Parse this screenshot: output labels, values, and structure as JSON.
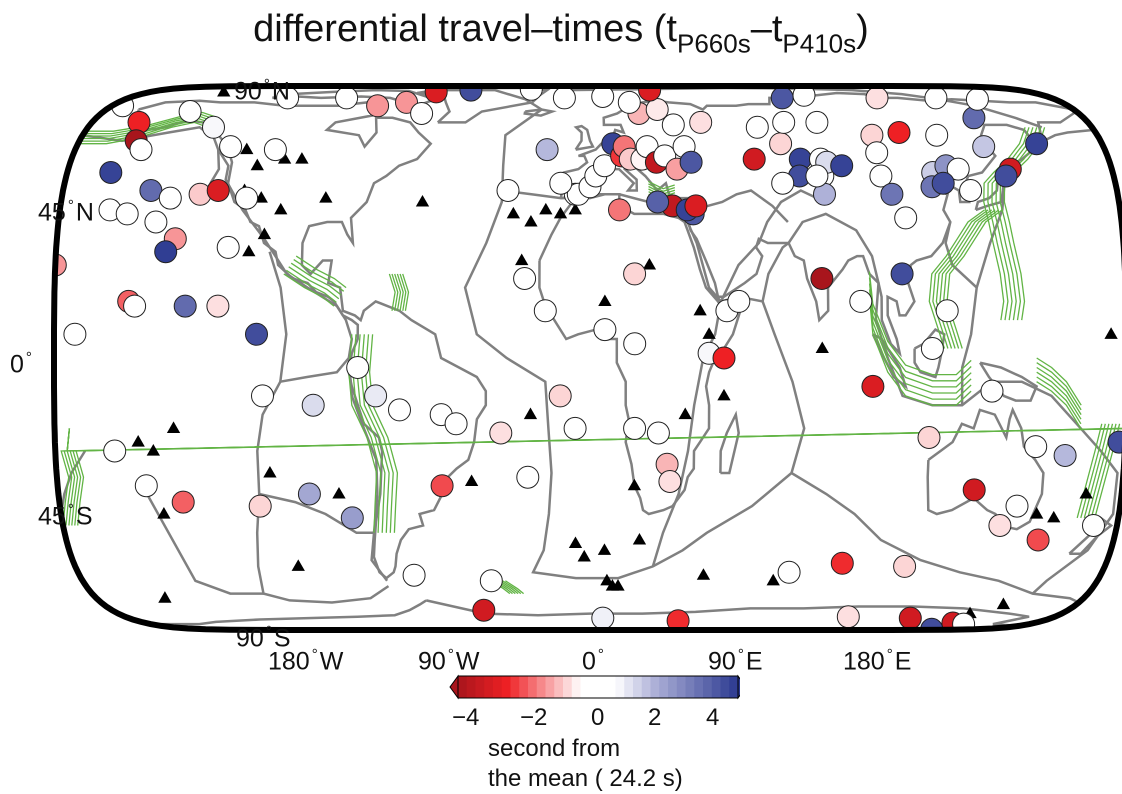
{
  "title": {
    "prefix": "differential travel–times (t",
    "sub1": "P660s",
    "mid": "–t",
    "sub2": "P410s",
    "suffix": ")"
  },
  "lat_labels": [
    {
      "id": "lat-90n",
      "text": "90",
      "hemi": "N",
      "lat": 90
    },
    {
      "id": "lat-45n",
      "text": "45",
      "hemi": "N",
      "lat": 45
    },
    {
      "id": "lat-0",
      "text": "0",
      "hemi": "",
      "lat": 0
    },
    {
      "id": "lat-45s",
      "text": "45",
      "hemi": "S",
      "lat": -45
    },
    {
      "id": "lat-90s",
      "text": "90",
      "hemi": "S",
      "lat": -90
    }
  ],
  "lon_labels": [
    {
      "id": "lon-180w",
      "text": "180",
      "hemi": "W",
      "lon": -180
    },
    {
      "id": "lon-90w",
      "text": "90",
      "hemi": "W",
      "lon": -90
    },
    {
      "id": "lon-0",
      "text": "0",
      "hemi": "",
      "lon": 0
    },
    {
      "id": "lon-90e",
      "text": "90",
      "hemi": "E",
      "lon": 90
    },
    {
      "id": "lon-180e",
      "text": "180",
      "hemi": "E",
      "lon": 180
    }
  ],
  "colorbar": {
    "min": -4,
    "max": 4,
    "ticks": [
      "−4",
      "−2",
      "0",
      "2",
      "4"
    ],
    "tick_values": [
      -4,
      -2,
      0,
      2,
      4
    ],
    "caption_line1": "second from",
    "caption_line2": "the mean ( 24.2 s)",
    "colors": {
      "low": "#a8151c",
      "mid_low": "#ee2024",
      "zero": "#ffffff",
      "mid_high": "#aeb1d8",
      "high": "#2b3990"
    }
  },
  "colors": {
    "frame": "#000000",
    "coast": "#808080",
    "plate": "#808080",
    "slab": "#62b445",
    "triangle": "#000000",
    "marker_stroke": "#222222"
  },
  "stations": [
    {
      "lon": -176,
      "lat": 68,
      "v": 0
    },
    {
      "lon": -163,
      "lat": 60,
      "v": -2.6
    },
    {
      "lon": -160,
      "lat": 53,
      "v": -4
    },
    {
      "lon": -157,
      "lat": 50,
      "v": 0
    },
    {
      "lon": -165,
      "lat": 43,
      "v": 3.8
    },
    {
      "lon": -150,
      "lat": 38,
      "v": 3.0
    },
    {
      "lon": -143,
      "lat": 36,
      "v": 0
    },
    {
      "lon": -133,
      "lat": 37,
      "v": -1.0
    },
    {
      "lon": -148,
      "lat": 65,
      "v": 0
    },
    {
      "lon": -135,
      "lat": 58,
      "v": 0.6
    },
    {
      "lon": -126,
      "lat": 51,
      "v": 0
    },
    {
      "lon": -110,
      "lat": 50,
      "v": 0
    },
    {
      "lon": -163,
      "lat": 33,
      "v": 0
    },
    {
      "lon": -157,
      "lat": 32,
      "v": 0
    },
    {
      "lon": -147,
      "lat": 30,
      "v": 0
    },
    {
      "lon": -140,
      "lat": 26,
      "v": -1.5
    },
    {
      "lon": -127,
      "lat": 38,
      "v": -3.0
    },
    {
      "lon": -117,
      "lat": 36,
      "v": 0
    },
    {
      "lon": -143,
      "lat": 23,
      "v": 3.9
    },
    {
      "lon": -122,
      "lat": 24,
      "v": 0
    },
    {
      "lon": -118,
      "lat": 73,
      "v": 0
    },
    {
      "lon": -95,
      "lat": 73,
      "v": 0
    },
    {
      "lon": -80,
      "lat": 68,
      "v": -1.5
    },
    {
      "lon": -70,
      "lat": 70,
      "v": -1.5
    },
    {
      "lon": -62,
      "lat": 64,
      "v": 0
    },
    {
      "lon": -63,
      "lat": 78,
      "v": -3.0
    },
    {
      "lon": -50,
      "lat": 80,
      "v": 3.6
    },
    {
      "lon": -25,
      "lat": 81,
      "v": 0
    },
    {
      "lon": -180,
      "lat": 20,
      "v": -1.5
    },
    {
      "lon": -173,
      "lat": 5,
      "v": 0
    },
    {
      "lon": -155,
      "lat": 12,
      "v": -2.0
    },
    {
      "lon": -153,
      "lat": 11,
      "v": 0
    },
    {
      "lon": -136,
      "lat": 11,
      "v": 3.0
    },
    {
      "lon": -125,
      "lat": 11,
      "v": -0.8
    },
    {
      "lon": -112,
      "lat": 5,
      "v": 3.6
    },
    {
      "lon": -110,
      "lat": -8,
      "v": 0
    },
    {
      "lon": -93,
      "lat": -10,
      "v": 1.0
    },
    {
      "lon": -78,
      "lat": -2,
      "v": 0
    },
    {
      "lon": -72,
      "lat": -8,
      "v": 0.8
    },
    {
      "lon": -64,
      "lat": -11,
      "v": 0
    },
    {
      "lon": -50,
      "lat": -12,
      "v": 0
    },
    {
      "lon": -45,
      "lat": -14,
      "v": 0
    },
    {
      "lon": -30,
      "lat": -16,
      "v": -0.8
    },
    {
      "lon": -21,
      "lat": -26,
      "v": 0
    },
    {
      "lon": -160,
      "lat": -20,
      "v": 0
    },
    {
      "lon": -150,
      "lat": -28,
      "v": 0
    },
    {
      "lon": -138,
      "lat": -32,
      "v": -2.0
    },
    {
      "lon": -112,
      "lat": -33,
      "v": -0.9
    },
    {
      "lon": -95,
      "lat": -30,
      "v": 1.8
    },
    {
      "lon": -81,
      "lat": -36,
      "v": 2.0
    },
    {
      "lon": -50,
      "lat": -28,
      "v": -2.2
    },
    {
      "lon": -62,
      "lat": -53,
      "v": 0
    },
    {
      "lon": -35,
      "lat": -55,
      "v": 0
    },
    {
      "lon": -40,
      "lat": -68,
      "v": -3.2
    },
    {
      "lon": 5,
      "lat": -73,
      "v": 0.7
    },
    {
      "lon": 35,
      "lat": -75,
      "v": -2.5
    },
    {
      "lon": 100,
      "lat": -72,
      "v": -0.8
    },
    {
      "lon": 125,
      "lat": -73,
      "v": -3.2
    },
    {
      "lon": 147,
      "lat": -77,
      "v": -3.2
    },
    {
      "lon": 153,
      "lat": -78,
      "v": 0
    },
    {
      "lon": 160,
      "lat": -86,
      "v": 3.6
    },
    {
      "lon": 110,
      "lat": -50,
      "v": -0.9
    },
    {
      "lon": 88,
      "lat": -49,
      "v": -2.5
    },
    {
      "lon": 70,
      "lat": -52,
      "v": 0
    },
    {
      "lon": 130,
      "lat": -29,
      "v": -3.2
    },
    {
      "lon": 140,
      "lat": -38,
      "v": -0.8
    },
    {
      "lon": 145,
      "lat": -33,
      "v": 0
    },
    {
      "lon": 154,
      "lat": -42,
      "v": -2.2
    },
    {
      "lon": 172,
      "lat": -38,
      "v": 0
    },
    {
      "lon": 150,
      "lat": -19,
      "v": 0
    },
    {
      "lon": 160,
      "lat": -21,
      "v": 1.5
    },
    {
      "lon": 178,
      "lat": -18,
      "v": 3.6
    },
    {
      "lon": 114,
      "lat": -17,
      "v": -0.9
    },
    {
      "lon": 95,
      "lat": -6,
      "v": -3.0
    },
    {
      "lon": -10,
      "lat": -8,
      "v": -0.9
    },
    {
      "lon": -5,
      "lat": -15,
      "v": 0
    },
    {
      "lon": 15,
      "lat": -15,
      "v": 0
    },
    {
      "lon": 23,
      "lat": -16,
      "v": 0
    },
    {
      "lon": 26,
      "lat": -23,
      "v": -1.2
    },
    {
      "lon": 27,
      "lat": -27,
      "v": -0.8
    },
    {
      "lon": 40,
      "lat": 1,
      "v": 0.6
    },
    {
      "lon": 45,
      "lat": 0,
      "v": -2.6
    },
    {
      "lon": 15,
      "lat": 18,
      "v": -0.9
    },
    {
      "lon": -15,
      "lat": 10,
      "v": 0
    },
    {
      "lon": -22,
      "lat": 17,
      "v": 0
    },
    {
      "lon": 5,
      "lat": 6,
      "v": 0
    },
    {
      "lon": 15,
      "lat": 3,
      "v": 0.3
    },
    {
      "lon": 46,
      "lat": 10,
      "v": 0
    },
    {
      "lon": 50,
      "lat": 12,
      "v": 0
    },
    {
      "lon": 35,
      "lat": 32,
      "v": 3.4
    },
    {
      "lon": 28,
      "lat": 34,
      "v": -3.5
    },
    {
      "lon": 33,
      "lat": 33,
      "v": 3.8
    },
    {
      "lon": 36,
      "lat": 34,
      "v": -3.0
    },
    {
      "lon": 23,
      "lat": 35,
      "v": 3.2
    },
    {
      "lon": 10,
      "lat": 33,
      "v": -1.8
    },
    {
      "lon": -5,
      "lat": 37,
      "v": 0
    },
    {
      "lon": -4,
      "lat": 37,
      "v": 0
    },
    {
      "lon": 0,
      "lat": 39,
      "v": 0
    },
    {
      "lon": 2,
      "lat": 42,
      "v": 0
    },
    {
      "lon": 5,
      "lat": 45,
      "v": 0.5
    },
    {
      "lon": -10,
      "lat": 40,
      "v": 0
    },
    {
      "lon": -15,
      "lat": 50,
      "v": 1.5
    },
    {
      "lon": -28,
      "lat": 38,
      "v": 0
    },
    {
      "lon": 8,
      "lat": 52,
      "v": 3.8
    },
    {
      "lon": 11,
      "lat": 48,
      "v": -2.4
    },
    {
      "lon": 12,
      "lat": 51,
      "v": -1.8
    },
    {
      "lon": 14,
      "lat": 47,
      "v": -1.0
    },
    {
      "lon": 18,
      "lat": 47,
      "v": -0.6
    },
    {
      "lon": 20,
      "lat": 51,
      "v": 0
    },
    {
      "lon": 23,
      "lat": 46,
      "v": -3.5
    },
    {
      "lon": 26,
      "lat": 48,
      "v": 0
    },
    {
      "lon": 30,
      "lat": 44,
      "v": -1.4
    },
    {
      "lon": 33,
      "lat": 51,
      "v": 0
    },
    {
      "lon": 35,
      "lat": 46,
      "v": 3.4
    },
    {
      "lon": 30,
      "lat": 59,
      "v": 0
    },
    {
      "lon": 18,
      "lat": 64,
      "v": -1.2
    },
    {
      "lon": 25,
      "lat": 66,
      "v": -0.7
    },
    {
      "lon": -10,
      "lat": 73,
      "v": 0
    },
    {
      "lon": 25,
      "lat": 80,
      "v": -3.0
    },
    {
      "lon": 5,
      "lat": 74,
      "v": 0
    },
    {
      "lon": 15,
      "lat": 70,
      "v": 0
    },
    {
      "lon": 40,
      "lat": 60,
      "v": -0.8
    },
    {
      "lon": 57,
      "lat": 47,
      "v": -3.2
    },
    {
      "lon": 60,
      "lat": 58,
      "v": 0
    },
    {
      "lon": 67,
      "lat": 52,
      "v": -0.9
    },
    {
      "lon": 70,
      "lat": 60,
      "v": 0
    },
    {
      "lon": 82,
      "lat": 60,
      "v": 0
    },
    {
      "lon": 75,
      "lat": 73,
      "v": 3.4
    },
    {
      "lon": 73,
      "lat": 47,
      "v": 3.8
    },
    {
      "lon": 72,
      "lat": 42,
      "v": 3.6
    },
    {
      "lon": 80,
      "lat": 47,
      "v": 0
    },
    {
      "lon": 80,
      "lat": 42,
      "v": 0
    },
    {
      "lon": 82,
      "lat": 46,
      "v": 1.0
    },
    {
      "lon": 87,
      "lat": 45,
      "v": 3.8
    },
    {
      "lon": 80,
      "lat": 37,
      "v": 1.6
    },
    {
      "lon": 78,
      "lat": 42,
      "v": 0
    },
    {
      "lon": 66,
      "lat": 40,
      "v": 0
    },
    {
      "lon": 100,
      "lat": 55,
      "v": -0.9
    },
    {
      "lon": 110,
      "lat": 56,
      "v": -2.6
    },
    {
      "lon": 100,
      "lat": 42,
      "v": 0
    },
    {
      "lon": 100,
      "lat": 49,
      "v": 0.4
    },
    {
      "lon": 118,
      "lat": 43,
      "v": 1.2
    },
    {
      "lon": 103,
      "lat": 37,
      "v": 2.8
    },
    {
      "lon": 107,
      "lat": 31,
      "v": 0
    },
    {
      "lon": 117,
      "lat": 39,
      "v": 2.8
    },
    {
      "lon": 123,
      "lat": 45,
      "v": 2.2
    },
    {
      "lon": 127,
      "lat": 44,
      "v": 0
    },
    {
      "lon": 121,
      "lat": 40,
      "v": 3.6
    },
    {
      "lon": 130,
      "lat": 38,
      "v": 0
    },
    {
      "lon": 123,
      "lat": 55,
      "v": 0
    },
    {
      "lon": 140,
      "lat": 62,
      "v": 3.0
    },
    {
      "lon": 157,
      "lat": 52,
      "v": 3.8
    },
    {
      "lon": 150,
      "lat": 72,
      "v": 0.2
    },
    {
      "lon": 135,
      "lat": 73,
      "v": 0
    },
    {
      "lon": 112,
      "lat": 73,
      "v": -0.8
    },
    {
      "lon": 85,
      "lat": 75,
      "v": 0
    },
    {
      "lon": 138,
      "lat": 51,
      "v": 1.3
    },
    {
      "lon": 145,
      "lat": 44,
      "v": -3.2
    },
    {
      "lon": 143,
      "lat": 42,
      "v": 3.6
    },
    {
      "lon": 78,
      "lat": 17,
      "v": -4
    },
    {
      "lon": 91,
      "lat": 12,
      "v": 0
    },
    {
      "lon": 105,
      "lat": 18,
      "v": 3.6
    },
    {
      "lon": 120,
      "lat": 10,
      "v": 0
    },
    {
      "lon": 115,
      "lat": 2,
      "v": 0
    },
    {
      "lon": 135,
      "lat": -7,
      "v": 0
    }
  ],
  "volcanoes": [
    {
      "lon": -120,
      "lat": 50
    },
    {
      "lon": -115,
      "lat": 45
    },
    {
      "lon": -118,
      "lat": 38
    },
    {
      "lon": -112,
      "lat": 36
    },
    {
      "lon": -110,
      "lat": 27
    },
    {
      "lon": -115,
      "lat": 23
    },
    {
      "lon": -105,
      "lat": 33
    },
    {
      "lon": -100,
      "lat": 47
    },
    {
      "lon": -106,
      "lat": 47
    },
    {
      "lon": -90,
      "lat": 36
    },
    {
      "lon": -57,
      "lat": 35
    },
    {
      "lon": -140,
      "lat": -15
    },
    {
      "lon": -147,
      "lat": -20
    },
    {
      "lon": -152,
      "lat": -18
    },
    {
      "lon": -145,
      "lat": -35
    },
    {
      "lon": -108,
      "lat": -25
    },
    {
      "lon": -85,
      "lat": -30
    },
    {
      "lon": -102,
      "lat": -50
    },
    {
      "lon": -155,
      "lat": -62
    },
    {
      "lon": -20,
      "lat": -12
    },
    {
      "lon": -40,
      "lat": -27
    },
    {
      "lon": -26,
      "lat": 32
    },
    {
      "lon": -20,
      "lat": 30
    },
    {
      "lon": -10,
      "lat": 32
    },
    {
      "lon": -15,
      "lat": 33
    },
    {
      "lon": -5,
      "lat": 33
    },
    {
      "lon": -23,
      "lat": 21
    },
    {
      "lon": 20,
      "lat": 20
    },
    {
      "lon": 15,
      "lat": -28
    },
    {
      "lon": 17,
      "lat": -42
    },
    {
      "lon": -5,
      "lat": -43
    },
    {
      "lon": -2,
      "lat": -47
    },
    {
      "lon": 5,
      "lat": -45
    },
    {
      "lon": 6,
      "lat": -55
    },
    {
      "lon": 8,
      "lat": -57
    },
    {
      "lon": 10,
      "lat": -57
    },
    {
      "lon": 40,
      "lat": -53
    },
    {
      "lon": 45,
      "lat": -8
    },
    {
      "lon": 65,
      "lat": -55
    },
    {
      "lon": 37,
      "lat": 10
    },
    {
      "lon": 5,
      "lat": 12
    },
    {
      "lon": 32,
      "lat": -12
    },
    {
      "lon": 40,
      "lat": 5
    },
    {
      "lon": 152,
      "lat": -35
    },
    {
      "lon": 158,
      "lat": -36
    },
    {
      "lon": 168,
      "lat": -30
    },
    {
      "lon": 153,
      "lat": -65
    },
    {
      "lon": -150,
      "lat": 78
    },
    {
      "lon": -10,
      "lat": 80
    },
    {
      "lon": 145,
      "lat": -70
    },
    {
      "lon": 78,
      "lat": 2
    },
    {
      "lon": 175,
      "lat": 5
    }
  ]
}
